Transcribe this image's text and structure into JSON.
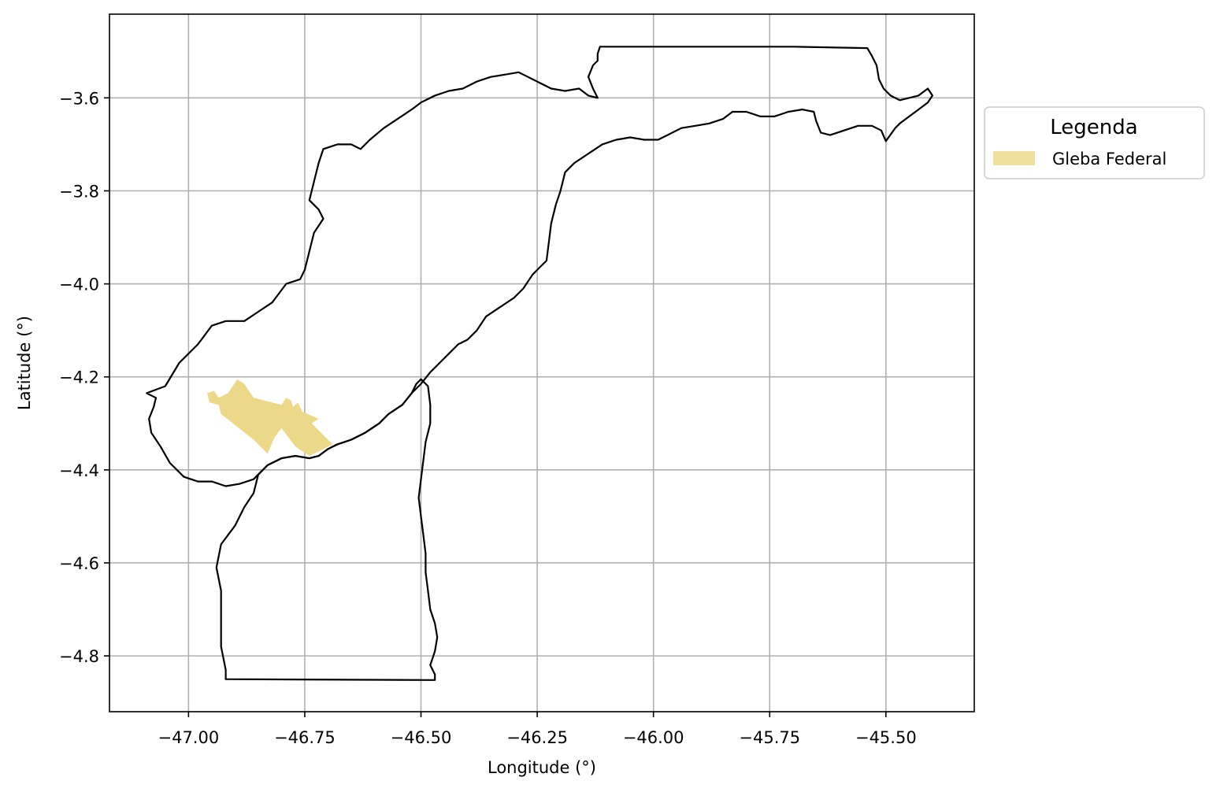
{
  "chart_data": {
    "type": "map",
    "xlabel": "Longitude (°)",
    "ylabel": "Latitude (°)",
    "xlim": [
      -47.17,
      -45.31
    ],
    "ylim": [
      -4.92,
      -3.42
    ],
    "xticks": [
      -47.0,
      -46.75,
      -46.5,
      -46.25,
      -46.0,
      -45.75,
      -45.5
    ],
    "xtick_labels": [
      "−47.00",
      "−46.75",
      "−46.50",
      "−46.25",
      "−46.00",
      "−45.75",
      "−45.50"
    ],
    "yticks": [
      -3.6,
      -3.8,
      -4.0,
      -4.2,
      -4.4,
      -4.6,
      -4.8
    ],
    "ytick_labels": [
      "−3.6",
      "−3.8",
      "−4.0",
      "−4.2",
      "−4.4",
      "−4.6",
      "−4.8"
    ],
    "grid": true,
    "legend": {
      "title": "Legenda",
      "placement": "outside-right",
      "entries": [
        {
          "label": "Gleba Federal",
          "color": "#f0de9f"
        }
      ]
    },
    "colors": {
      "boundary": "#000000",
      "gleba": "#ecd889",
      "grid": "#b0b0b0"
    },
    "layers": [
      {
        "name": "boundary-north",
        "kind": "outline",
        "coords": [
          [
            -47.09,
            -4.235
          ],
          [
            -47.05,
            -4.22
          ],
          [
            -47.02,
            -4.17
          ],
          [
            -46.98,
            -4.13
          ],
          [
            -46.95,
            -4.09
          ],
          [
            -46.92,
            -4.08
          ],
          [
            -46.88,
            -4.08
          ],
          [
            -46.85,
            -4.06
          ],
          [
            -46.82,
            -4.04
          ],
          [
            -46.79,
            -4.0
          ],
          [
            -46.76,
            -3.99
          ],
          [
            -46.75,
            -3.97
          ],
          [
            -46.74,
            -3.93
          ],
          [
            -46.73,
            -3.89
          ],
          [
            -46.71,
            -3.86
          ],
          [
            -46.72,
            -3.84
          ],
          [
            -46.74,
            -3.82
          ],
          [
            -46.73,
            -3.78
          ],
          [
            -46.72,
            -3.74
          ],
          [
            -46.71,
            -3.71
          ],
          [
            -46.68,
            -3.7
          ],
          [
            -46.65,
            -3.7
          ],
          [
            -46.63,
            -3.71
          ],
          [
            -46.61,
            -3.69
          ],
          [
            -46.58,
            -3.665
          ],
          [
            -46.55,
            -3.645
          ],
          [
            -46.52,
            -3.625
          ],
          [
            -46.5,
            -3.61
          ],
          [
            -46.47,
            -3.595
          ],
          [
            -46.44,
            -3.585
          ],
          [
            -46.41,
            -3.58
          ],
          [
            -46.38,
            -3.565
          ],
          [
            -46.35,
            -3.555
          ],
          [
            -46.32,
            -3.55
          ],
          [
            -46.29,
            -3.545
          ],
          [
            -46.27,
            -3.555
          ],
          [
            -46.25,
            -3.565
          ],
          [
            -46.22,
            -3.58
          ],
          [
            -46.19,
            -3.585
          ],
          [
            -46.16,
            -3.58
          ],
          [
            -46.14,
            -3.595
          ],
          [
            -46.12,
            -3.6
          ],
          [
            -46.13,
            -3.58
          ],
          [
            -46.14,
            -3.555
          ],
          [
            -46.13,
            -3.53
          ],
          [
            -46.12,
            -3.52
          ],
          [
            -46.12,
            -3.505
          ],
          [
            -46.115,
            -3.49
          ],
          [
            -45.9,
            -3.49
          ],
          [
            -45.7,
            -3.49
          ],
          [
            -45.54,
            -3.493
          ],
          [
            -45.53,
            -3.51
          ],
          [
            -45.52,
            -3.53
          ],
          [
            -45.515,
            -3.56
          ],
          [
            -45.505,
            -3.58
          ],
          [
            -45.49,
            -3.595
          ],
          [
            -45.47,
            -3.605
          ],
          [
            -45.45,
            -3.6
          ],
          [
            -45.43,
            -3.595
          ],
          [
            -45.41,
            -3.58
          ],
          [
            -45.4,
            -3.595
          ],
          [
            -45.41,
            -3.61
          ],
          [
            -45.43,
            -3.625
          ],
          [
            -45.45,
            -3.64
          ],
          [
            -45.47,
            -3.655
          ],
          [
            -45.48,
            -3.665
          ],
          [
            -45.5,
            -3.693
          ],
          [
            -45.51,
            -3.67
          ],
          [
            -45.53,
            -3.66
          ],
          [
            -45.56,
            -3.66
          ],
          [
            -45.59,
            -3.67
          ],
          [
            -45.62,
            -3.68
          ],
          [
            -45.64,
            -3.675
          ],
          [
            -45.65,
            -3.65
          ],
          [
            -45.655,
            -3.63
          ],
          [
            -45.68,
            -3.625
          ],
          [
            -45.71,
            -3.63
          ],
          [
            -45.74,
            -3.64
          ],
          [
            -45.77,
            -3.64
          ],
          [
            -45.8,
            -3.63
          ],
          [
            -45.83,
            -3.63
          ],
          [
            -45.85,
            -3.645
          ],
          [
            -45.88,
            -3.655
          ],
          [
            -45.91,
            -3.66
          ],
          [
            -45.94,
            -3.665
          ],
          [
            -45.97,
            -3.68
          ],
          [
            -45.99,
            -3.69
          ],
          [
            -46.02,
            -3.69
          ],
          [
            -46.05,
            -3.685
          ],
          [
            -46.08,
            -3.69
          ],
          [
            -46.11,
            -3.7
          ],
          [
            -46.14,
            -3.72
          ],
          [
            -46.17,
            -3.74
          ],
          [
            -46.19,
            -3.76
          ],
          [
            -46.2,
            -3.8
          ],
          [
            -46.21,
            -3.83
          ],
          [
            -46.22,
            -3.87
          ],
          [
            -46.225,
            -3.91
          ],
          [
            -46.23,
            -3.95
          ],
          [
            -46.245,
            -3.965
          ],
          [
            -46.26,
            -3.98
          ],
          [
            -46.28,
            -4.01
          ],
          [
            -46.3,
            -4.03
          ],
          [
            -46.33,
            -4.05
          ],
          [
            -46.36,
            -4.07
          ],
          [
            -46.38,
            -4.1
          ],
          [
            -46.4,
            -4.12
          ],
          [
            -46.42,
            -4.13
          ],
          [
            -46.44,
            -4.15
          ],
          [
            -46.46,
            -4.17
          ],
          [
            -46.48,
            -4.19
          ],
          [
            -46.5,
            -4.215
          ],
          [
            -46.52,
            -4.235
          ],
          [
            -46.54,
            -4.26
          ],
          [
            -46.57,
            -4.28
          ],
          [
            -46.59,
            -4.3
          ],
          [
            -46.62,
            -4.32
          ],
          [
            -46.65,
            -4.335
          ],
          [
            -46.68,
            -4.345
          ],
          [
            -46.7,
            -4.355
          ],
          [
            -46.72,
            -4.37
          ],
          [
            -46.74,
            -4.375
          ],
          [
            -46.77,
            -4.37
          ],
          [
            -46.8,
            -4.375
          ],
          [
            -46.83,
            -4.39
          ],
          [
            -46.86,
            -4.42
          ],
          [
            -46.89,
            -4.43
          ],
          [
            -46.92,
            -4.435
          ],
          [
            -46.95,
            -4.425
          ],
          [
            -46.98,
            -4.425
          ],
          [
            -47.01,
            -4.415
          ],
          [
            -47.04,
            -4.385
          ],
          [
            -47.06,
            -4.35
          ],
          [
            -47.08,
            -4.32
          ],
          [
            -47.085,
            -4.29
          ],
          [
            -47.075,
            -4.265
          ],
          [
            -47.07,
            -4.245
          ],
          [
            -47.09,
            -4.235
          ]
        ]
      },
      {
        "name": "boundary-south",
        "kind": "outline",
        "coords": [
          [
            -46.92,
            -4.85
          ],
          [
            -46.47,
            -4.852
          ],
          [
            -46.47,
            -4.84
          ],
          [
            -46.48,
            -4.82
          ],
          [
            -46.47,
            -4.79
          ],
          [
            -46.465,
            -4.76
          ],
          [
            -46.47,
            -4.73
          ],
          [
            -46.48,
            -4.7
          ],
          [
            -46.485,
            -4.66
          ],
          [
            -46.49,
            -4.62
          ],
          [
            -46.49,
            -4.58
          ],
          [
            -46.495,
            -4.54
          ],
          [
            -46.5,
            -4.5
          ],
          [
            -46.505,
            -4.46
          ],
          [
            -46.5,
            -4.42
          ],
          [
            -46.495,
            -4.38
          ],
          [
            -46.49,
            -4.34
          ],
          [
            -46.48,
            -4.3
          ],
          [
            -46.48,
            -4.26
          ],
          [
            -46.485,
            -4.22
          ],
          [
            -46.5,
            -4.205
          ],
          [
            -46.51,
            -4.215
          ],
          [
            -46.52,
            -4.235
          ],
          [
            -46.54,
            -4.26
          ],
          [
            -46.57,
            -4.28
          ],
          [
            -46.59,
            -4.3
          ],
          [
            -46.62,
            -4.32
          ],
          [
            -46.65,
            -4.335
          ],
          [
            -46.68,
            -4.345
          ],
          [
            -46.7,
            -4.355
          ],
          [
            -46.72,
            -4.37
          ],
          [
            -46.74,
            -4.375
          ],
          [
            -46.77,
            -4.37
          ],
          [
            -46.8,
            -4.375
          ],
          [
            -46.83,
            -4.39
          ],
          [
            -46.85,
            -4.41
          ],
          [
            -46.86,
            -4.45
          ],
          [
            -46.88,
            -4.48
          ],
          [
            -46.9,
            -4.52
          ],
          [
            -46.93,
            -4.56
          ],
          [
            -46.94,
            -4.61
          ],
          [
            -46.93,
            -4.66
          ],
          [
            -46.93,
            -4.72
          ],
          [
            -46.93,
            -4.78
          ],
          [
            -46.92,
            -4.83
          ],
          [
            -46.92,
            -4.85
          ]
        ]
      },
      {
        "name": "gleba-federal",
        "kind": "polygon",
        "coords": [
          [
            -46.96,
            -4.235
          ],
          [
            -46.945,
            -4.23
          ],
          [
            -46.935,
            -4.245
          ],
          [
            -46.925,
            -4.24
          ],
          [
            -46.915,
            -4.235
          ],
          [
            -46.895,
            -4.205
          ],
          [
            -46.88,
            -4.215
          ],
          [
            -46.86,
            -4.245
          ],
          [
            -46.8,
            -4.26
          ],
          [
            -46.79,
            -4.245
          ],
          [
            -46.78,
            -4.25
          ],
          [
            -46.775,
            -4.265
          ],
          [
            -46.765,
            -4.255
          ],
          [
            -46.755,
            -4.275
          ],
          [
            -46.72,
            -4.29
          ],
          [
            -46.735,
            -4.3
          ],
          [
            -46.72,
            -4.315
          ],
          [
            -46.69,
            -4.345
          ],
          [
            -46.74,
            -4.37
          ],
          [
            -46.77,
            -4.35
          ],
          [
            -46.8,
            -4.31
          ],
          [
            -46.815,
            -4.33
          ],
          [
            -46.83,
            -4.365
          ],
          [
            -46.86,
            -4.335
          ],
          [
            -46.93,
            -4.28
          ],
          [
            -46.935,
            -4.26
          ],
          [
            -46.955,
            -4.255
          ]
        ]
      }
    ]
  }
}
